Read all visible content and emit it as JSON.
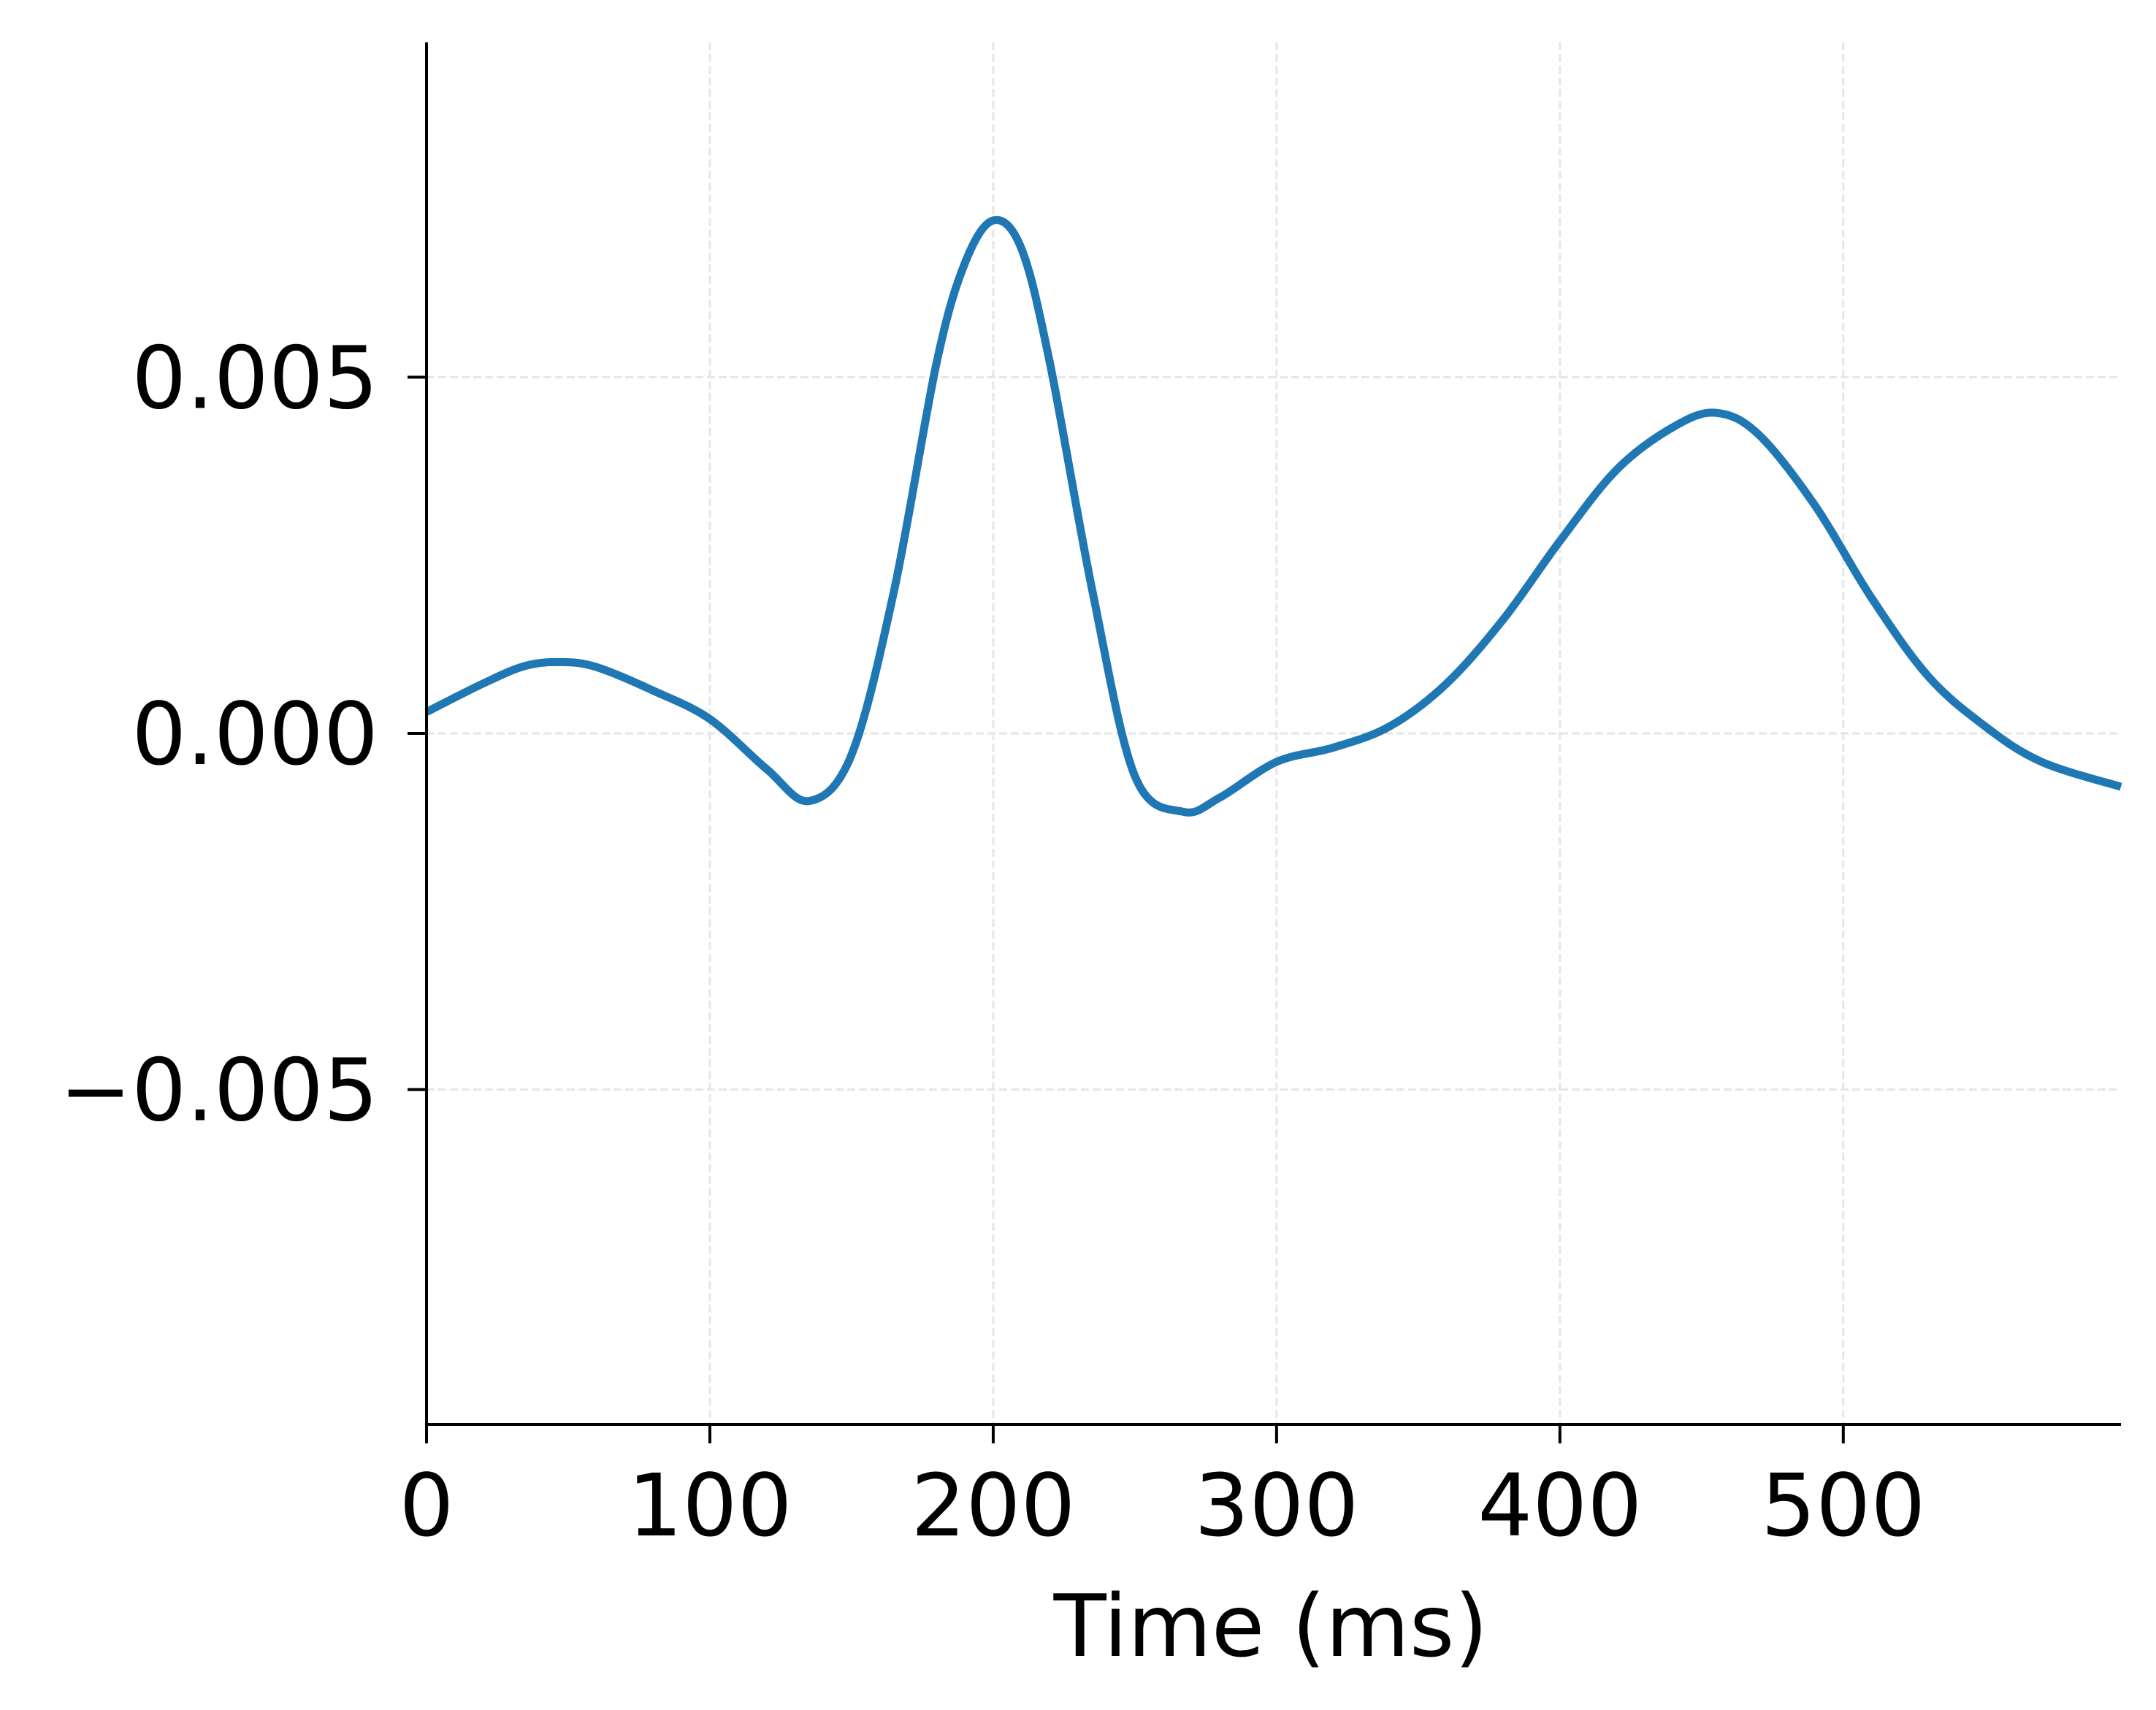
{
  "chart_data": {
    "type": "line",
    "title": "",
    "xlabel": "Time (ms)",
    "ylabel": "",
    "xlim": [
      0,
      598
    ],
    "ylim": [
      -0.0097,
      0.0097
    ],
    "xticks": [
      {
        "value": 0,
        "label": "0"
      },
      {
        "value": 100,
        "label": "100"
      },
      {
        "value": 200,
        "label": "200"
      },
      {
        "value": 300,
        "label": "300"
      },
      {
        "value": 400,
        "label": "400"
      },
      {
        "value": 500,
        "label": "500"
      }
    ],
    "yticks": [
      {
        "value": 0.005,
        "label": "0.005"
      },
      {
        "value": 0,
        "label": "0.000"
      },
      {
        "value": -0.005,
        "label": "−0.005"
      }
    ],
    "grid": true,
    "legend": "none",
    "colors": {
      "line": "#1f77b4",
      "grid": "#e6e6e6",
      "axis": "#000000"
    },
    "series": [
      {
        "x": [
          0,
          20,
          35,
          48,
          60,
          80,
          100,
          120,
          135,
          150,
          165,
          180,
          190,
          200,
          210,
          220,
          235,
          250,
          267,
          280,
          300,
          320,
          340,
          360,
          380,
          400,
          420,
          440,
          455,
          470,
          490,
          510,
          530,
          550,
          570,
          598
        ],
        "y": [
          0.0003,
          0.0007,
          0.00095,
          0.001,
          0.00093,
          0.0006,
          0.0002,
          -0.0005,
          -0.00095,
          -0.0003,
          0.002,
          0.0052,
          0.0066,
          0.0072,
          0.0068,
          0.0052,
          0.002,
          -0.0006,
          -0.0011,
          -0.0009,
          -0.0004,
          -0.0002,
          0.0001,
          0.0007,
          0.0016,
          0.0027,
          0.0037,
          0.0043,
          0.0045,
          0.0042,
          0.0032,
          0.0019,
          0.0008,
          0.0001,
          -0.0004,
          -0.00075
        ]
      }
    ]
  }
}
